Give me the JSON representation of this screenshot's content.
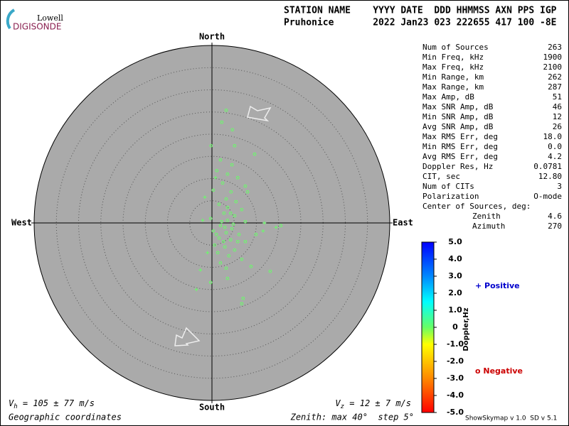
{
  "header": {
    "logo_top": "Lowell",
    "logo_bottom": "DIGISONDE",
    "columns": "STATION NAME    YYYY DATE  DDD HHMMSS AXN PPS IGP",
    "values": "Pruhonice       2022 Jan23 023 222655 417 100 -8E"
  },
  "stats": [
    [
      "Num of Sources",
      "263"
    ],
    [
      "Min Freq, kHz",
      "1900"
    ],
    [
      "Max Freq, kHz",
      "2100"
    ],
    [
      "Min Range, km",
      "262"
    ],
    [
      "Max Range, km",
      "287"
    ],
    [
      "Max Amp, dB",
      "51"
    ],
    [
      "Max SNR Amp, dB",
      "46"
    ],
    [
      "Min SNR Amp, dB",
      "12"
    ],
    [
      "Avg SNR Amp, dB",
      "26"
    ],
    [
      "Max RMS Err, deg",
      "18.0"
    ],
    [
      "Min RMS Err, deg",
      "0.0"
    ],
    [
      "Avg RMS Err, deg",
      "4.2"
    ],
    [
      "Doppler Res, Hz",
      "0.0781"
    ],
    [
      "CIT, sec",
      "12.80"
    ],
    [
      "Num of CITs",
      "3"
    ],
    [
      "Polarization",
      "O-mode"
    ]
  ],
  "center_title": "Center of Sources, deg:",
  "center": [
    [
      "Zenith",
      "4.6"
    ],
    [
      "Azimuth",
      "270"
    ]
  ],
  "directions": {
    "north": "North",
    "south": "South",
    "west": "West",
    "east": "East"
  },
  "chart_data": {
    "type": "skymap",
    "zenith_max": 40,
    "zenith_step": 5,
    "series": [
      {
        "symbol": "circle",
        "color": "#66ff66",
        "x": [
          3.2,
          2.2,
          4.6,
          -0.2,
          5.1,
          9.6,
          1.9,
          4.5,
          1.1,
          3.5,
          5.8,
          2.4,
          7.5,
          0.3,
          4.3,
          3.2,
          5.4,
          1.6,
          3.5,
          6.7,
          2.7,
          5.1,
          -0.3,
          3.5,
          7.5,
          15.5,
          1.9,
          4.5,
          0.3,
          3.2,
          6.1,
          1.6,
          4.2,
          7.5,
          0.6,
          2.9,
          5.1,
          1.3,
          3.8,
          6.7,
          1.9,
          8.8,
          3.2,
          13.1,
          -0.3,
          3.5,
          7.0,
          6.7,
          2.2,
          2.9,
          4.2,
          4.8,
          1.0,
          2.6,
          5.8,
          8.0,
          9.9
        ],
        "y": [
          25.4,
          22.7,
          21.0,
          17.4,
          17.4,
          15.5,
          14.2,
          13.1,
          11.8,
          11.0,
          10.2,
          9.0,
          8.3,
          7.4,
          7.0,
          5.4,
          4.8,
          4.2,
          3.5,
          3.0,
          2.2,
          1.6,
          1.0,
          0.6,
          0.3,
          -0.6,
          -0.6,
          -1.3,
          -1.8,
          -2.2,
          -2.6,
          -3.4,
          -3.8,
          -4.2,
          -5.0,
          -5.4,
          -6.1,
          -6.7,
          -7.4,
          -8.2,
          -9.0,
          -9.8,
          -10.2,
          -10.9,
          -13.4,
          -12.5,
          -17.0,
          -18.2,
          0.3,
          -1.0,
          2.2,
          -0.3,
          -2.6,
          -4.2,
          -4.2,
          7.0,
          -2.6
        ]
      },
      {
        "symbol": "plus",
        "color": "#66ff66",
        "x": [
          -1.6,
          0.8,
          -2.1,
          11.8,
          -1.0,
          -2.6,
          -3.5,
          11.5,
          14.4
        ],
        "y": [
          5.8,
          10.2,
          0.6,
          0.0,
          -6.7,
          -10.6,
          -15.0,
          -1.8,
          -1.0
        ]
      }
    ]
  },
  "colorbar": {
    "label": "Doppler,Hz",
    "lim": [
      -5,
      5
    ],
    "ticks": [
      {
        "value": 5,
        "label": "5.0"
      },
      {
        "value": 4,
        "label": "4.0"
      },
      {
        "value": 3,
        "label": "3.0"
      },
      {
        "value": 2,
        "label": "2.0"
      },
      {
        "value": 1,
        "label": "1.0"
      },
      0,
      {
        "value": -1,
        "label": "-1.0"
      },
      {
        "value": -2,
        "label": "-2.0"
      },
      {
        "value": -3,
        "label": "-3.0"
      },
      {
        "value": -4,
        "label": "-4.0"
      },
      {
        "value": -5,
        "label": "-5.0"
      }
    ]
  },
  "legend": {
    "positive": "+ Positive",
    "negative": "o Negative"
  },
  "footer": {
    "vh_symbol": "V",
    "vh_sub": "h",
    "vh_text": " = 105 ± 77 m/s",
    "vz_symbol": "V",
    "vz_sub": "z",
    "vz_text": " = 12 ± 7 m/s",
    "coords": "Geographic coordinates",
    "zenith": "Zenith: max 40°  step 5°",
    "version": "ShowSkymap v 1.0  SD v 5.1"
  }
}
